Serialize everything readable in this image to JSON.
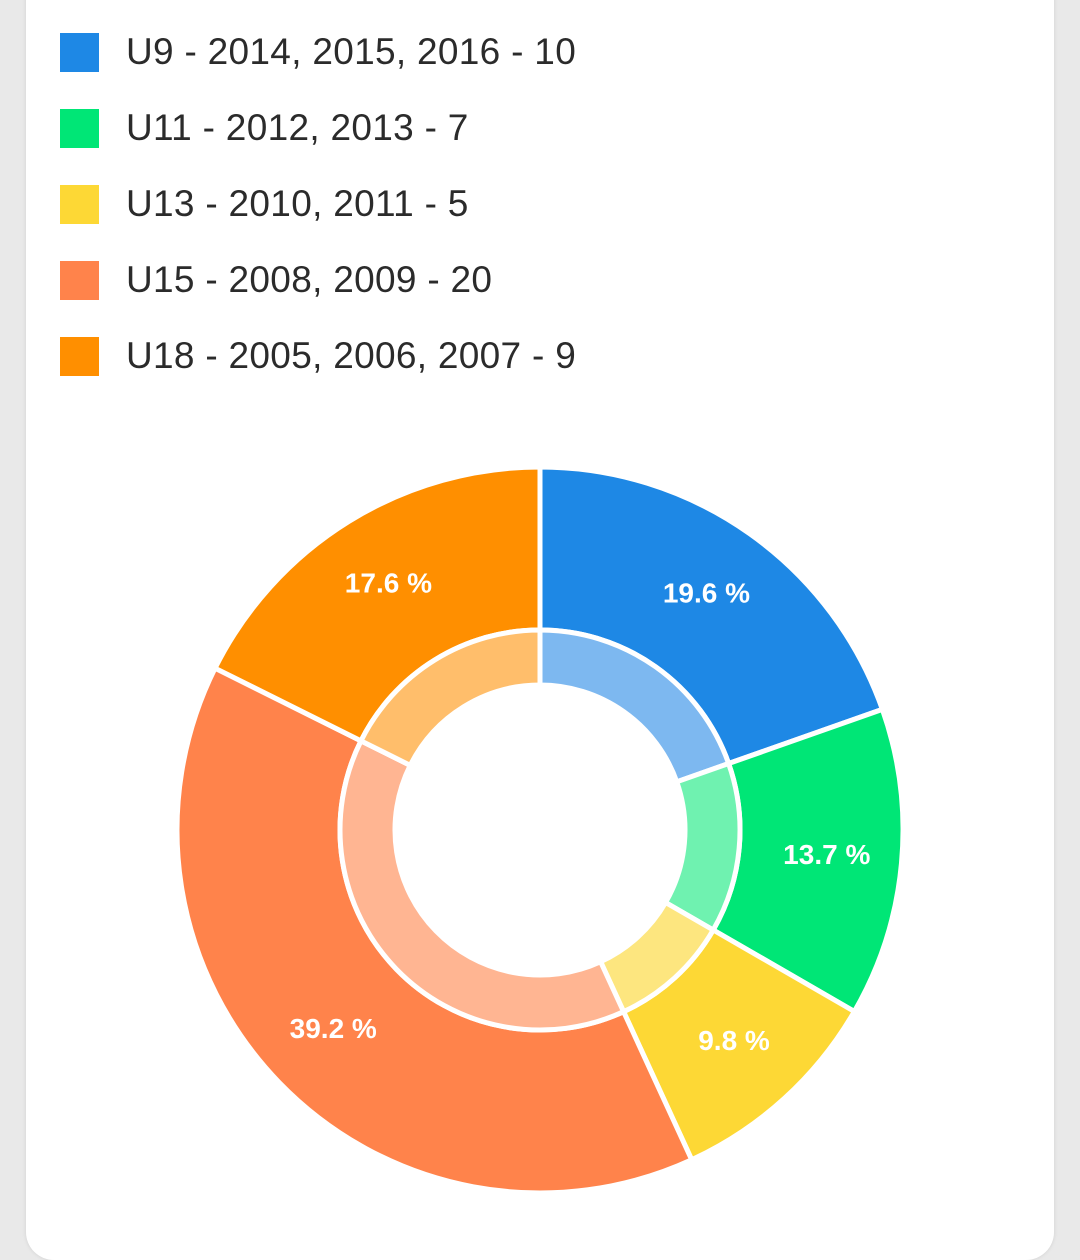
{
  "chart_data": {
    "type": "pie",
    "donut": true,
    "total": 51,
    "legend_position": "top-left",
    "slices": [
      {
        "name": "U9 - 2014, 2015, 2016 - 10",
        "value": 10,
        "percent_label": "19.6 %",
        "color": "#1e88e5",
        "inner_color": "#7db8f0"
      },
      {
        "name": "U11 - 2012, 2013 - 7",
        "value": 7,
        "percent_label": "13.7 %",
        "color": "#00e676",
        "inner_color": "#6ff2b0"
      },
      {
        "name": "U13 - 2010, 2011 - 5",
        "value": 5,
        "percent_label": "9.8 %",
        "color": "#fdd835",
        "inner_color": "#fde67f"
      },
      {
        "name": "U15 - 2008, 2009 - 20",
        "value": 20,
        "percent_label": "39.2 %",
        "color": "#ff834b",
        "inner_color": "#ffb592"
      },
      {
        "name": "U18 - 2005, 2006, 2007 - 9",
        "value": 9,
        "percent_label": "17.6 %",
        "color": "#ff8f00",
        "inner_color": "#ffbe6b"
      }
    ]
  }
}
